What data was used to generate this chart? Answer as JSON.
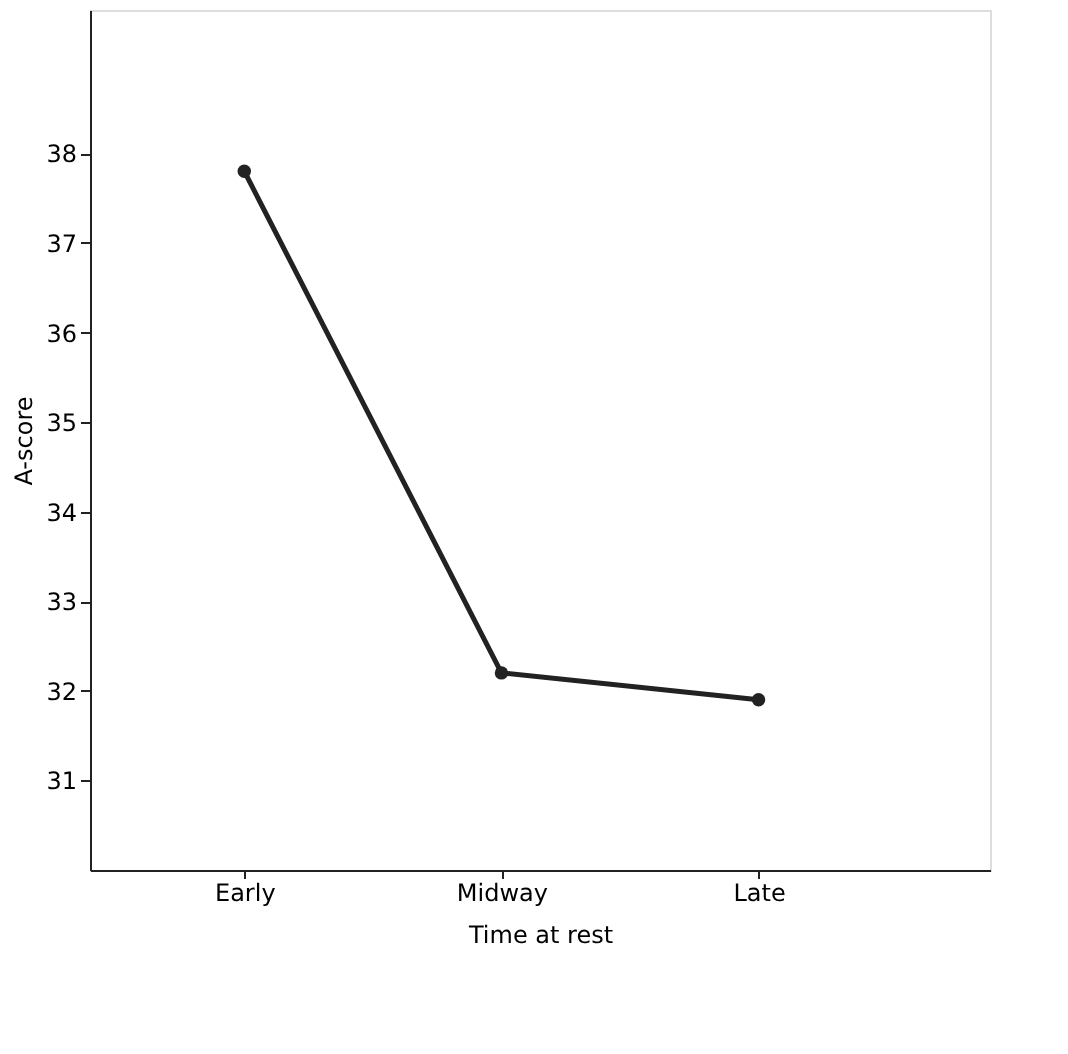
{
  "chart_data": {
    "type": "line",
    "xlabel": "Time at rest",
    "ylabel": "A-score",
    "categories": [
      "Early",
      "Midway",
      "Late"
    ],
    "series": [
      {
        "color": "#222222",
        "values": [
          37.8,
          32.2,
          31.9
        ]
      }
    ],
    "ylim": [
      30,
      39.6
    ],
    "yticks": [
      31,
      32,
      33,
      34,
      35,
      36,
      37,
      38
    ],
    "marker": "circle",
    "line_style": "solid",
    "grid": false,
    "legend": false
  }
}
